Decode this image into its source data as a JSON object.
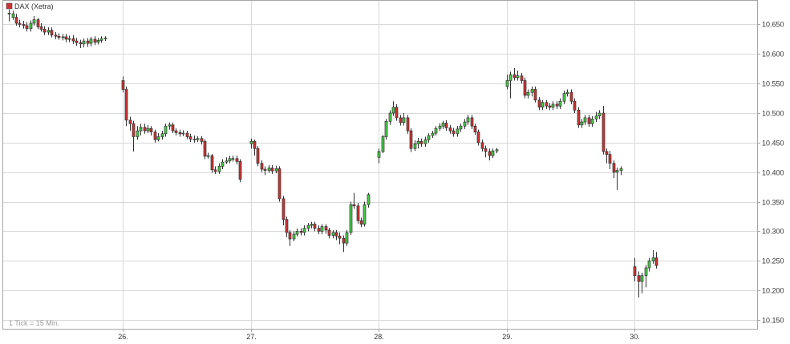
{
  "colors": {
    "up": "#44cc44",
    "down": "#cc3333",
    "grid": "#d9d9d9",
    "frame": "#a6a6a6",
    "wick": "#333333",
    "legend_swatch": "#cc3333"
  },
  "chart_data": {
    "type": "candlestick",
    "title": "",
    "legend": [
      {
        "name": "DAX (Xetra)",
        "color": "#cc3333",
        "placement": "top-left"
      }
    ],
    "note": "1 Tick = 15 Min.",
    "grid": true,
    "y_axis": {
      "position": "right",
      "ylim": [
        10135,
        10690
      ],
      "ticks": [
        10150,
        10200,
        10250,
        10300,
        10350,
        10400,
        10450,
        10500,
        10550,
        10600,
        10650
      ],
      "tick_labels": [
        "10.150",
        "10.200",
        "10.250",
        "10.300",
        "10.350",
        "10.400",
        "10.450",
        "10.500",
        "10.550",
        "10.600",
        "10.650"
      ]
    },
    "x_axis": {
      "ticks": [
        {
          "x": 8,
          "label": "26."
        },
        {
          "x": 17,
          "label": "27."
        },
        {
          "x": 26,
          "label": "28."
        },
        {
          "x": 35,
          "label": "29."
        },
        {
          "x": 44,
          "label": "30."
        }
      ],
      "xlim": [
        -0.4,
        52.6
      ],
      "interval_unit": "8.5 trading hours per day (09:00–17:30), 1 tick = 15 min"
    },
    "sessions": [
      {
        "start": 0,
        "candles": [
          [
            10669,
            10668,
            10675,
            10655
          ],
          [
            10662,
            10668,
            10673,
            10658
          ],
          [
            10662,
            10652,
            10668,
            10648
          ],
          [
            10652,
            10650,
            10658,
            10645
          ],
          [
            10650,
            10648,
            10656,
            10643
          ],
          [
            10648,
            10643,
            10654,
            10638
          ],
          [
            10643,
            10652,
            10657,
            10638
          ],
          [
            10652,
            10658,
            10664,
            10648
          ],
          [
            10658,
            10646,
            10661,
            10642
          ],
          [
            10646,
            10642,
            10652,
            10638
          ],
          [
            10642,
            10637,
            10647,
            10632
          ],
          [
            10637,
            10640,
            10645,
            10632
          ],
          [
            10640,
            10632,
            10645,
            10628
          ],
          [
            10632,
            10630,
            10637,
            10625
          ],
          [
            10630,
            10628,
            10635,
            10624
          ],
          [
            10628,
            10629,
            10634,
            10623
          ],
          [
            10629,
            10625,
            10634,
            10620
          ],
          [
            10625,
            10626,
            10631,
            10620
          ],
          [
            10626,
            10622,
            10632,
            10617
          ],
          [
            10622,
            10619,
            10627,
            10614
          ],
          [
            10619,
            10617,
            10624,
            10610
          ],
          [
            10617,
            10622,
            10626,
            10611
          ],
          [
            10622,
            10618,
            10627,
            10612
          ],
          [
            10618,
            10625,
            10629,
            10613
          ],
          [
            10625,
            10620,
            10630,
            10615
          ],
          [
            10620,
            10623,
            10627,
            10616
          ],
          [
            10623,
            10626,
            10630,
            10619
          ],
          [
            10626,
            10627,
            10630,
            10622
          ]
        ]
      },
      {
        "start": 8,
        "candles": [
          [
            10555,
            10540,
            10562,
            10535
          ],
          [
            10540,
            10488,
            10545,
            10478
          ],
          [
            10488,
            10482,
            10494,
            10470
          ],
          [
            10482,
            10460,
            10487,
            10435
          ],
          [
            10460,
            10470,
            10478,
            10455
          ],
          [
            10470,
            10476,
            10482,
            10462
          ],
          [
            10476,
            10470,
            10482,
            10465
          ],
          [
            10470,
            10474,
            10480,
            10466
          ],
          [
            10474,
            10468,
            10478,
            10462
          ],
          [
            10468,
            10455,
            10472,
            10450
          ],
          [
            10455,
            10460,
            10466,
            10452
          ],
          [
            10460,
            10465,
            10470,
            10455
          ],
          [
            10465,
            10478,
            10482,
            10460
          ],
          [
            10478,
            10480,
            10484,
            10472
          ],
          [
            10480,
            10470,
            10484,
            10466
          ],
          [
            10470,
            10467,
            10474,
            10462
          ],
          [
            10467,
            10465,
            10472,
            10460
          ],
          [
            10465,
            10466,
            10471,
            10461
          ],
          [
            10466,
            10460,
            10470,
            10456
          ],
          [
            10460,
            10456,
            10465,
            10451
          ],
          [
            10456,
            10455,
            10462,
            10450
          ],
          [
            10455,
            10457,
            10461,
            10451
          ],
          [
            10457,
            10452,
            10461,
            10447
          ],
          [
            10452,
            10427,
            10456,
            10422
          ],
          [
            10427,
            10428,
            10433,
            10423
          ],
          [
            10428,
            10404,
            10431,
            10399
          ],
          [
            10404,
            10401,
            10410,
            10397
          ],
          [
            10401,
            10410,
            10415,
            10397
          ],
          [
            10410,
            10417,
            10422,
            10405
          ],
          [
            10417,
            10419,
            10425,
            10414
          ],
          [
            10419,
            10423,
            10428,
            10415
          ],
          [
            10423,
            10423,
            10428,
            10418
          ],
          [
            10423,
            10418,
            10428,
            10413
          ],
          [
            10418,
            10388,
            10422,
            10383
          ]
        ]
      },
      {
        "start": 17,
        "candles": [
          [
            10448,
            10452,
            10457,
            10440
          ],
          [
            10452,
            10440,
            10455,
            10428
          ],
          [
            10440,
            10415,
            10444,
            10410
          ],
          [
            10415,
            10405,
            10420,
            10400
          ],
          [
            10405,
            10403,
            10410,
            10395
          ],
          [
            10403,
            10407,
            10412,
            10399
          ],
          [
            10407,
            10402,
            10412,
            10397
          ],
          [
            10402,
            10406,
            10411,
            10398
          ],
          [
            10406,
            10355,
            10410,
            10350
          ],
          [
            10355,
            10320,
            10360,
            10310
          ],
          [
            10320,
            10298,
            10325,
            10290
          ],
          [
            10298,
            10287,
            10302,
            10275
          ],
          [
            10287,
            10295,
            10300,
            10283
          ],
          [
            10295,
            10300,
            10305,
            10291
          ],
          [
            10300,
            10298,
            10305,
            10293
          ],
          [
            10298,
            10305,
            10310,
            10293
          ],
          [
            10305,
            10310,
            10314,
            10300
          ],
          [
            10310,
            10312,
            10316,
            10305
          ],
          [
            10312,
            10305,
            10316,
            10300
          ],
          [
            10305,
            10300,
            10310,
            10295
          ],
          [
            10300,
            10308,
            10312,
            10295
          ],
          [
            10308,
            10302,
            10312,
            10296
          ],
          [
            10302,
            10293,
            10306,
            10288
          ],
          [
            10293,
            10298,
            10302,
            10288
          ],
          [
            10298,
            10292,
            10302,
            10285
          ],
          [
            10292,
            10288,
            10298,
            10278
          ],
          [
            10288,
            10280,
            10293,
            10265
          ],
          [
            10280,
            10298,
            10302,
            10275
          ],
          [
            10298,
            10345,
            10350,
            10294
          ],
          [
            10345,
            10343,
            10365,
            10338
          ],
          [
            10343,
            10318,
            10348,
            10313
          ],
          [
            10318,
            10312,
            10323,
            10307
          ],
          [
            10312,
            10345,
            10350,
            10308
          ],
          [
            10345,
            10362,
            10365,
            10340
          ]
        ]
      },
      {
        "start": 26,
        "candles": [
          [
            10425,
            10435,
            10440,
            10415
          ],
          [
            10435,
            10460,
            10463,
            10432
          ],
          [
            10460,
            10486,
            10490,
            10455
          ],
          [
            10486,
            10500,
            10505,
            10480
          ],
          [
            10500,
            10510,
            10520,
            10495
          ],
          [
            10510,
            10492,
            10515,
            10487
          ],
          [
            10492,
            10484,
            10497,
            10479
          ],
          [
            10484,
            10492,
            10500,
            10479
          ],
          [
            10492,
            10470,
            10497,
            10465
          ],
          [
            10470,
            10440,
            10474,
            10434
          ],
          [
            10440,
            10448,
            10454,
            10436
          ],
          [
            10448,
            10452,
            10458,
            10440
          ],
          [
            10452,
            10448,
            10457,
            10443
          ],
          [
            10448,
            10455,
            10460,
            10443
          ],
          [
            10455,
            10462,
            10466,
            10450
          ],
          [
            10462,
            10466,
            10470,
            10458
          ],
          [
            10466,
            10474,
            10478,
            10462
          ],
          [
            10474,
            10478,
            10483,
            10470
          ],
          [
            10478,
            10483,
            10487,
            10473
          ],
          [
            10483,
            10475,
            10488,
            10470
          ],
          [
            10475,
            10470,
            10480,
            10465
          ],
          [
            10470,
            10465,
            10475,
            10460
          ],
          [
            10465,
            10473,
            10478,
            10460
          ],
          [
            10473,
            10478,
            10482,
            10468
          ],
          [
            10478,
            10485,
            10490,
            10473
          ],
          [
            10485,
            10492,
            10497,
            10480
          ],
          [
            10492,
            10478,
            10497,
            10473
          ],
          [
            10478,
            10468,
            10482,
            10463
          ],
          [
            10468,
            10450,
            10472,
            10445
          ],
          [
            10450,
            10440,
            10455,
            10435
          ],
          [
            10440,
            10435,
            10445,
            10425
          ],
          [
            10435,
            10428,
            10440,
            10420
          ],
          [
            10428,
            10436,
            10440,
            10424
          ],
          [
            10436,
            10438,
            10441,
            10432
          ]
        ]
      },
      {
        "start": 35,
        "candles": [
          [
            10545,
            10555,
            10565,
            10540
          ],
          [
            10555,
            10565,
            10570,
            10525
          ],
          [
            10565,
            10560,
            10576,
            10555
          ],
          [
            10560,
            10563,
            10572,
            10555
          ],
          [
            10563,
            10555,
            10568,
            10550
          ],
          [
            10555,
            10530,
            10560,
            10525
          ],
          [
            10530,
            10535,
            10540,
            10525
          ],
          [
            10535,
            10540,
            10545,
            10528
          ],
          [
            10540,
            10522,
            10545,
            10518
          ],
          [
            10522,
            10510,
            10527,
            10505
          ],
          [
            10510,
            10518,
            10522,
            10505
          ],
          [
            10518,
            10512,
            10522,
            10507
          ],
          [
            10512,
            10510,
            10517,
            10505
          ],
          [
            10510,
            10515,
            10520,
            10505
          ],
          [
            10515,
            10512,
            10520,
            10507
          ],
          [
            10512,
            10520,
            10525,
            10507
          ],
          [
            10520,
            10533,
            10538,
            10515
          ],
          [
            10533,
            10535,
            10540,
            10528
          ],
          [
            10535,
            10520,
            10540,
            10515
          ],
          [
            10520,
            10505,
            10525,
            10500
          ],
          [
            10505,
            10480,
            10510,
            10475
          ],
          [
            10480,
            10485,
            10490,
            10475
          ],
          [
            10485,
            10492,
            10497,
            10480
          ],
          [
            10492,
            10482,
            10497,
            10477
          ],
          [
            10482,
            10490,
            10495,
            10477
          ],
          [
            10490,
            10495,
            10502,
            10485
          ],
          [
            10495,
            10500,
            10505,
            10490
          ],
          [
            10500,
            10435,
            10512,
            10430
          ],
          [
            10435,
            10430,
            10440,
            10415
          ],
          [
            10430,
            10415,
            10436,
            10405
          ],
          [
            10415,
            10400,
            10420,
            10390
          ],
          [
            10400,
            10403,
            10408,
            10370
          ],
          [
            10403,
            10406,
            10410,
            10395
          ]
        ]
      },
      {
        "start": 44,
        "candles": [
          [
            10240,
            10225,
            10255,
            10215
          ],
          [
            10225,
            10215,
            10232,
            10188
          ],
          [
            10215,
            10225,
            10230,
            10195
          ],
          [
            10225,
            10238,
            10243,
            10205
          ],
          [
            10238,
            10250,
            10255,
            10232
          ],
          [
            10250,
            10255,
            10268,
            10245
          ],
          [
            10255,
            10242,
            10265,
            10237
          ]
        ]
      }
    ]
  }
}
